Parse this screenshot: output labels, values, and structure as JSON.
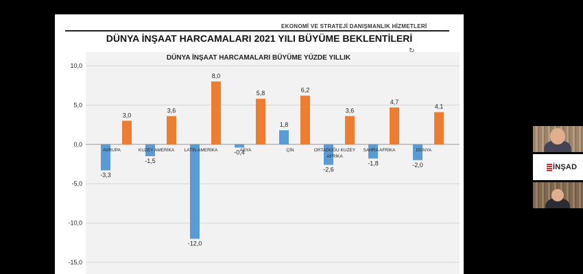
{
  "slide": {
    "company": "EKONOMİ VE STRATEJİ DANIŞMANLIK HİZMETLERİ",
    "title": "DÜNYA İNŞAAT HARCAMALARI 2021 YILI BÜYÜME BEKLENTİLERİ"
  },
  "chart_data": {
    "type": "bar",
    "title": "DÜNYA İNŞAAT HARCAMALARI BÜYÜME YÜZDE YILLIK",
    "categories": [
      "AVRUPA",
      "KUZEY AMERİKA",
      "LATİN AMERİKA",
      "ASYA",
      "ÇİN",
      "ORTADOĞU KUZEY AFRİKA",
      "SAHRA AFRİKA",
      "DÜNYA"
    ],
    "category_lines": [
      [
        "AVRUPA"
      ],
      [
        "KUZEY AMERİKA"
      ],
      [
        "LATİN AMERİKA"
      ],
      [
        "ASYA"
      ],
      [
        "ÇİN"
      ],
      [
        "ORTADOĞU KUZEY",
        "AFRİKA"
      ],
      [
        "SAHRA AFRİKA"
      ],
      [
        "DÜNYA"
      ]
    ],
    "series": [
      {
        "values": [
          -3.3,
          -1.5,
          -12.0,
          -0.4,
          1.8,
          -2.6,
          -1.8,
          -2.0
        ],
        "color": "#5b9bd5"
      },
      {
        "values": [
          3.0,
          3.6,
          8.0,
          5.8,
          6.2,
          3.6,
          4.7,
          4.1
        ],
        "color": "#ed7d31"
      }
    ],
    "value_labels": [
      [
        "-3,3",
        "-1,5",
        "-12,0",
        "-0,4",
        "1,8",
        "-2,6",
        "-1,8",
        "-2,0"
      ],
      [
        "3,0",
        "3,6",
        "8,0",
        "5,8",
        "6,2",
        "3,6",
        "4,7",
        "4,1"
      ]
    ],
    "y_ticks": [
      10,
      5,
      0,
      -5,
      -10,
      -15
    ],
    "y_tick_labels": [
      "10,0",
      "5,0",
      "0,0",
      "-5,0",
      "-10,0",
      "-15,0"
    ],
    "ylim": [
      -15,
      10
    ],
    "grid": true,
    "plot_background": "#f2f2f2"
  },
  "participants": {
    "logo_text": "İNŞAD"
  }
}
